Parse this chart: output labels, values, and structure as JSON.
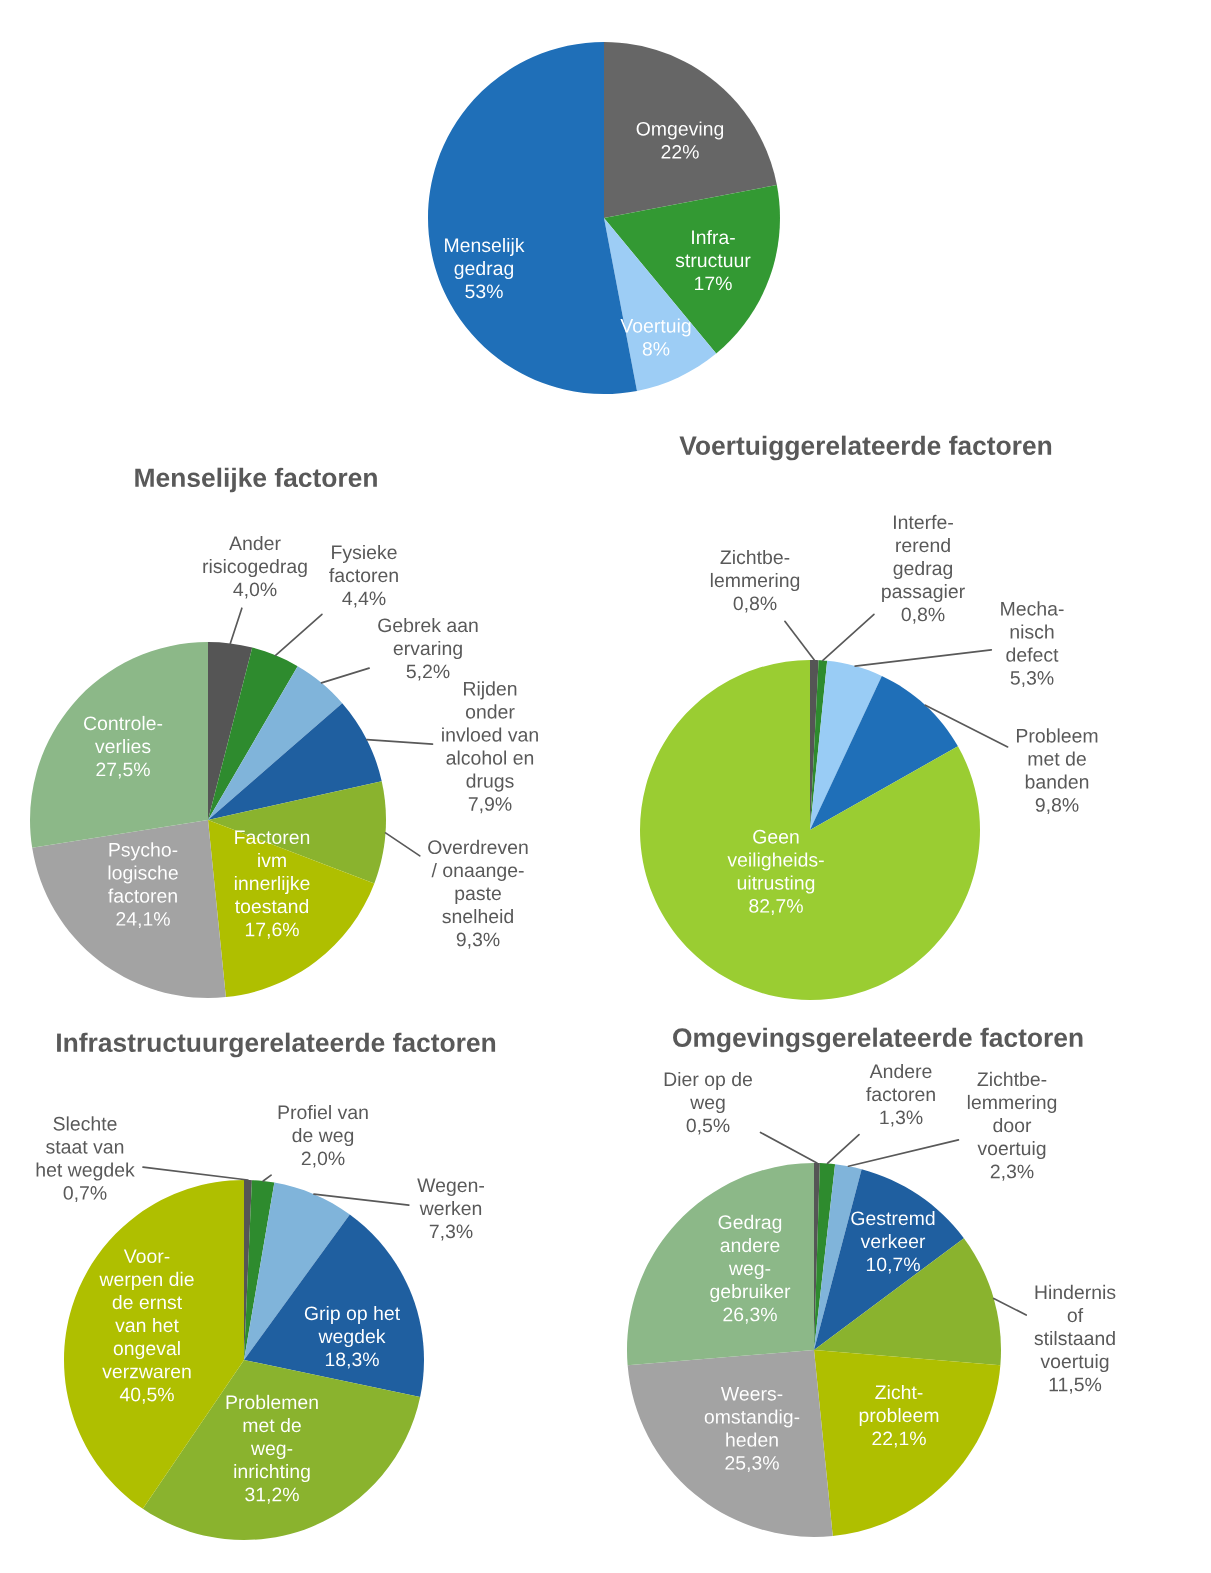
{
  "chart_data": [
    {
      "type": "pie",
      "categories": [
        "Omgeving",
        "Infra-\nstructuur",
        "Voertuig",
        "Menselijk\ngedrag"
      ],
      "values": [
        22,
        17,
        8,
        53
      ],
      "value_labels": [
        "22%",
        "17%",
        "8%",
        "53%"
      ],
      "colors": [
        "#666666",
        "#339933",
        "#9dcdf5",
        "#1f6fb8"
      ]
    },
    {
      "type": "pie",
      "title": "Menselijke factoren",
      "categories": [
        "Ander\nrisicogedrag",
        "Fysieke\nfactoren",
        "Gebrek aan\nervaring",
        "Rijden\nonder\ninvloed van\nalcohol en\ndrugs",
        "Overdreven\n/ onaange-\npaste\nsnelheid",
        "Factoren\nivm\ninnerlijke\ntoestand",
        "Psycho-\nlogische\nfactoren",
        "Controle-\nverlies"
      ],
      "values": [
        4.0,
        4.4,
        5.2,
        7.9,
        9.3,
        17.6,
        24.1,
        27.5
      ],
      "value_labels": [
        "4,0%",
        "4,4%",
        "5,2%",
        "7,9%",
        "9,3%",
        "17,6%",
        "24,1%",
        "27,5%"
      ],
      "colors": [
        "#555555",
        "#2e8b2e",
        "#80b4da",
        "#1f5fa0",
        "#8ab32e",
        "#afbf00",
        "#a3a3a3",
        "#8cb888"
      ]
    },
    {
      "type": "pie",
      "title": "Voertuiggerelateerde factoren",
      "categories": [
        "Zichtbe-\nlemmering",
        "Interfe-\nrerend\ngedrag\npassagier",
        "Mecha-\nnisch\ndefect",
        "Probleem\nmet de\nbanden",
        "Geen\nveiligheids-\nuitrusting"
      ],
      "values": [
        0.8,
        0.8,
        5.3,
        9.8,
        82.7
      ],
      "value_labels": [
        "0,8%",
        "0,8%",
        "5,3%",
        "9,8%",
        "82,7%"
      ],
      "colors": [
        "#555555",
        "#2e8b2e",
        "#99ccf5",
        "#1f6fb8",
        "#9acd32"
      ]
    },
    {
      "type": "pie",
      "title": "Infrastructuurgerelateerde factoren",
      "categories": [
        "Slechte\nstaat van\nhet wegdek",
        "Profiel van\nde weg",
        "Wegen-\nwerken",
        "Grip op het\nwegdek",
        "Problemen\nmet de\nweg-\ninrichting",
        "Voor-\nwerpen die\nde ernst\nvan het\nongeval\nverzwaren"
      ],
      "values": [
        0.7,
        2.0,
        7.3,
        18.3,
        31.2,
        40.5
      ],
      "value_labels": [
        "0,7%",
        "2,0%",
        "7,3%",
        "18,3%",
        "31,2%",
        "40,5%"
      ],
      "colors": [
        "#555555",
        "#2e8b2e",
        "#80b4da",
        "#1f5fa0",
        "#8ab32e",
        "#afbf00"
      ]
    },
    {
      "type": "pie",
      "title": "Omgevingsgerelateerde factoren",
      "categories": [
        "Dier op de\nweg",
        "Andere\nfactoren",
        "Zichtbe-\nlemmering\ndoor\nvoertuig",
        "Gestremd\nverkeer",
        "Hindernis\nof\nstilstaand\nvoertuig",
        "Zicht-\nprobleem",
        "Weers-\nomstandig-\nheden",
        "Gedrag\nandere\nweg-\ngebruiker"
      ],
      "values": [
        0.5,
        1.3,
        2.3,
        10.7,
        11.5,
        22.1,
        25.3,
        26.3
      ],
      "value_labels": [
        "0,5%",
        "1,3%",
        "2,3%",
        "10,7%",
        "11,5%",
        "22,1%",
        "25,3%",
        "26,3%"
      ],
      "colors": [
        "#555555",
        "#2e8b2e",
        "#80b4da",
        "#1f5fa0",
        "#8ab32e",
        "#afbf00",
        "#a3a3a3",
        "#8cb888"
      ]
    }
  ]
}
